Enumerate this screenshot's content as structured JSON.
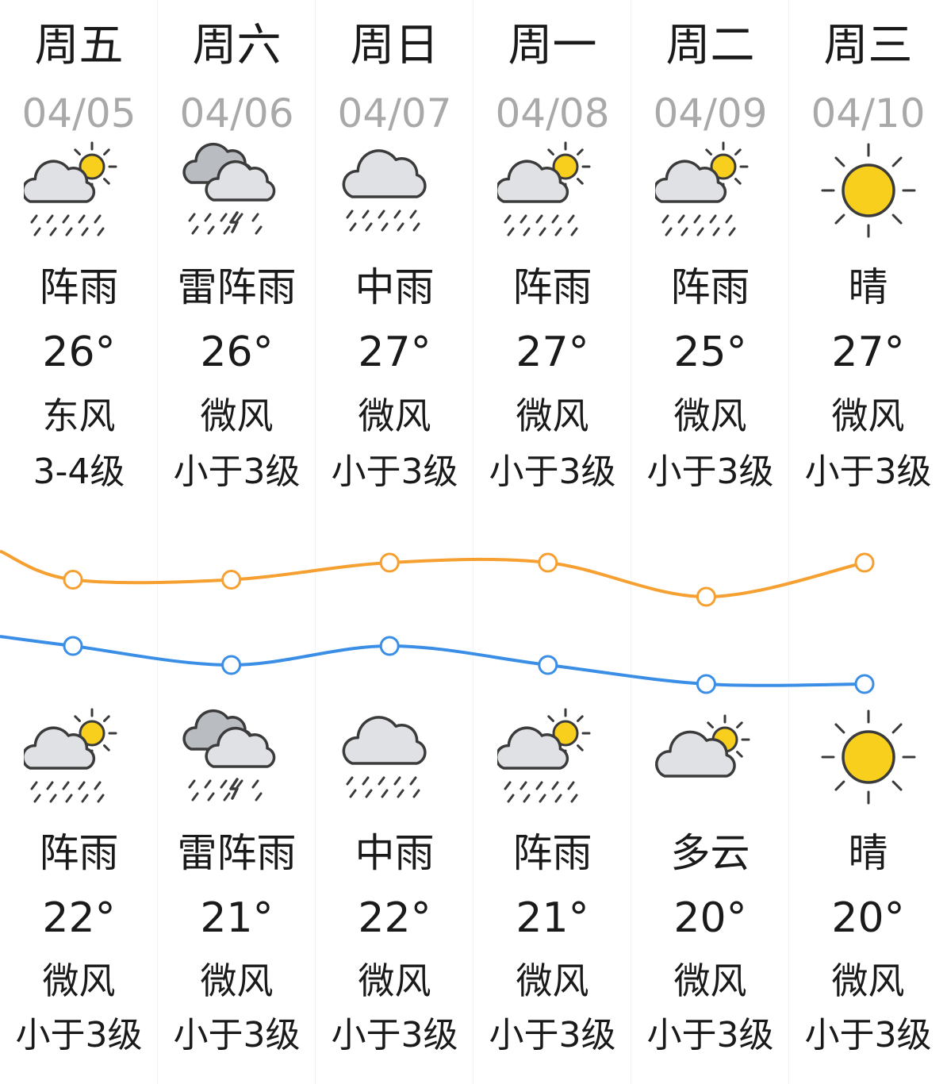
{
  "days": [
    {
      "name": "周五",
      "date": "04/05",
      "day": {
        "icon": "shower-icon",
        "cond": "阵雨",
        "temp": "26°",
        "wind": "东风",
        "level": "3-4级"
      },
      "night": {
        "icon": "shower-icon",
        "cond": "阵雨",
        "temp": "22°",
        "wind": "微风",
        "level": "小于3级"
      }
    },
    {
      "name": "周六",
      "date": "04/06",
      "day": {
        "icon": "thunder-shower-icon",
        "cond": "雷阵雨",
        "temp": "26°",
        "wind": "微风",
        "level": "小于3级"
      },
      "night": {
        "icon": "thunder-shower-icon",
        "cond": "雷阵雨",
        "temp": "21°",
        "wind": "微风",
        "level": "小于3级"
      }
    },
    {
      "name": "周日",
      "date": "04/07",
      "day": {
        "icon": "moderate-rain-icon",
        "cond": "中雨",
        "temp": "27°",
        "wind": "微风",
        "level": "小于3级"
      },
      "night": {
        "icon": "moderate-rain-icon",
        "cond": "中雨",
        "temp": "22°",
        "wind": "微风",
        "level": "小于3级"
      }
    },
    {
      "name": "周一",
      "date": "04/08",
      "day": {
        "icon": "shower-icon",
        "cond": "阵雨",
        "temp": "27°",
        "wind": "微风",
        "level": "小于3级"
      },
      "night": {
        "icon": "shower-icon",
        "cond": "阵雨",
        "temp": "21°",
        "wind": "微风",
        "level": "小于3级"
      }
    },
    {
      "name": "周二",
      "date": "04/09",
      "day": {
        "icon": "shower-icon",
        "cond": "阵雨",
        "temp": "25°",
        "wind": "微风",
        "level": "小于3级"
      },
      "night": {
        "icon": "partly-cloudy-icon",
        "cond": "多云",
        "temp": "20°",
        "wind": "微风",
        "level": "小于3级"
      }
    },
    {
      "name": "周三",
      "date": "04/10",
      "day": {
        "icon": "sunny-icon",
        "cond": "晴",
        "temp": "27°",
        "wind": "微风",
        "level": "小于3级"
      },
      "night": {
        "icon": "sunny-icon",
        "cond": "晴",
        "temp": "20°",
        "wind": "微风",
        "level": "小于3级"
      }
    }
  ],
  "chart_data": {
    "type": "line",
    "x": [
      "04/05",
      "04/06",
      "04/07",
      "04/08",
      "04/09",
      "04/10"
    ],
    "series": [
      {
        "values": [
          26,
          26,
          27,
          27,
          25,
          27
        ],
        "color": "#f5a030"
      },
      {
        "values": [
          22,
          21,
          22,
          21,
          20,
          20
        ],
        "color": "#3a8ee6"
      }
    ]
  }
}
